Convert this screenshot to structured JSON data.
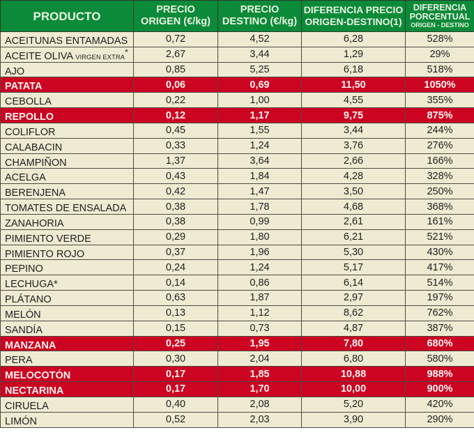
{
  "header": {
    "producto": "PRODUCTO",
    "precio_origen_l1": "PRECIO",
    "precio_origen_l2": "ORIGEN (€/kg)",
    "precio_destino_l1": "PRECIO",
    "precio_destino_l2": "DESTINO (€/kg)",
    "diferencia_l1": "DIFERENCIA PRECIO",
    "diferencia_l2": "ORIGEN-DESTINO(1)",
    "porcentual_l1": "DIFERENCIA",
    "porcentual_l2": "PORCENTUAL",
    "porcentual_l3": "ORIGEN - DESTINO"
  },
  "colors": {
    "header_bg": "#0b8a3a",
    "row_bg": "#efebd2",
    "highlight_bg": "#cc0422"
  },
  "rows": [
    {
      "name": "ACEITUNAS ENTAMADAS",
      "sub": "",
      "suffix": "",
      "origen": "0,72",
      "destino": "4,52",
      "diferencia": "6,28",
      "porcentaje": "528%",
      "highlight": false
    },
    {
      "name": "ACEITE OLIVA ",
      "sub": "VIRGEN EXTRA",
      "suffix": "*",
      "origen": "2,67",
      "destino": "3,44",
      "diferencia": "1,29",
      "porcentaje": "29%",
      "highlight": false
    },
    {
      "name": "AJO",
      "sub": "",
      "suffix": "",
      "origen": "0,85",
      "destino": "5,25",
      "diferencia": "6,18",
      "porcentaje": "518%",
      "highlight": false
    },
    {
      "name": "PATATA",
      "sub": "",
      "suffix": "",
      "origen": "0,06",
      "destino": "0,69",
      "diferencia": "11,50",
      "porcentaje": "1050%",
      "highlight": true
    },
    {
      "name": "CEBOLLA",
      "sub": "",
      "suffix": "",
      "origen": "0,22",
      "destino": "1,00",
      "diferencia": "4,55",
      "porcentaje": "355%",
      "highlight": false
    },
    {
      "name": "REPOLLO",
      "sub": "",
      "suffix": "",
      "origen": "0,12",
      "destino": "1,17",
      "diferencia": "9,75",
      "porcentaje": "875%",
      "highlight": true
    },
    {
      "name": "COLIFLOR",
      "sub": "",
      "suffix": "",
      "origen": "0,45",
      "destino": "1,55",
      "diferencia": "3,44",
      "porcentaje": "244%",
      "highlight": false
    },
    {
      "name": "CALABACIN",
      "sub": "",
      "suffix": "",
      "origen": "0,33",
      "destino": "1,24",
      "diferencia": "3,76",
      "porcentaje": "276%",
      "highlight": false
    },
    {
      "name": "CHAMPIÑON",
      "sub": "",
      "suffix": "",
      "origen": "1,37",
      "destino": "3,64",
      "diferencia": "2,66",
      "porcentaje": "166%",
      "highlight": false
    },
    {
      "name": "ACELGA",
      "sub": "",
      "suffix": "",
      "origen": "0,43",
      "destino": "1,84",
      "diferencia": "4,28",
      "porcentaje": "328%",
      "highlight": false
    },
    {
      "name": "BERENJENA",
      "sub": "",
      "suffix": "",
      "origen": "0,42",
      "destino": "1,47",
      "diferencia": "3,50",
      "porcentaje": "250%",
      "highlight": false
    },
    {
      "name": "TOMATES DE ENSALADA",
      "sub": "",
      "suffix": "",
      "origen": "0,38",
      "destino": "1,78",
      "diferencia": "4,68",
      "porcentaje": "368%",
      "highlight": false
    },
    {
      "name": "ZANAHORIA",
      "sub": "",
      "suffix": "",
      "origen": "0,38",
      "destino": "0,99",
      "diferencia": "2,61",
      "porcentaje": "161%",
      "highlight": false
    },
    {
      "name": "PIMIENTO VERDE",
      "sub": "",
      "suffix": "",
      "origen": "0,29",
      "destino": "1,80",
      "diferencia": "6,21",
      "porcentaje": "521%",
      "highlight": false
    },
    {
      "name": "PIMIENTO ROJO",
      "sub": "",
      "suffix": "",
      "origen": "0,37",
      "destino": "1,96",
      "diferencia": "5,30",
      "porcentaje": "430%",
      "highlight": false
    },
    {
      "name": "PEPINO",
      "sub": "",
      "suffix": "",
      "origen": "0,24",
      "destino": "1,24",
      "diferencia": "5,17",
      "porcentaje": "417%",
      "highlight": false
    },
    {
      "name": "LECHUGA*",
      "sub": "",
      "suffix": "",
      "origen": "0,14",
      "destino": "0,86",
      "diferencia": "6,14",
      "porcentaje": "514%",
      "highlight": false
    },
    {
      "name": "PLÁTANO",
      "sub": "",
      "suffix": "",
      "origen": "0,63",
      "destino": "1,87",
      "diferencia": "2,97",
      "porcentaje": "197%",
      "highlight": false
    },
    {
      "name": "MELÓN",
      "sub": "",
      "suffix": "",
      "origen": "0,13",
      "destino": "1,12",
      "diferencia": "8,62",
      "porcentaje": "762%",
      "highlight": false
    },
    {
      "name": "SANDÍA",
      "sub": "",
      "suffix": "",
      "origen": "0,15",
      "destino": "0,73",
      "diferencia": "4,87",
      "porcentaje": "387%",
      "highlight": false
    },
    {
      "name": "MANZANA",
      "sub": "",
      "suffix": "",
      "origen": "0,25",
      "destino": "1,95",
      "diferencia": "7,80",
      "porcentaje": "680%",
      "highlight": true
    },
    {
      "name": "PERA",
      "sub": "",
      "suffix": "",
      "origen": "0,30",
      "destino": "2,04",
      "diferencia": "6,80",
      "porcentaje": "580%",
      "highlight": false
    },
    {
      "name": "MELOCOTÓN",
      "sub": "",
      "suffix": "",
      "origen": "0,17",
      "destino": "1,85",
      "diferencia": "10,88",
      "porcentaje": "988%",
      "highlight": true
    },
    {
      "name": "NECTARINA",
      "sub": "",
      "suffix": "",
      "origen": "0,17",
      "destino": "1,70",
      "diferencia": "10,00",
      "porcentaje": "900%",
      "highlight": true
    },
    {
      "name": "CIRUELA",
      "sub": "",
      "suffix": "",
      "origen": "0,40",
      "destino": "2,08",
      "diferencia": "5,20",
      "porcentaje": "420%",
      "highlight": false
    },
    {
      "name": "LIMÓN",
      "sub": "",
      "suffix": "",
      "origen": "0,52",
      "destino": "2,03",
      "diferencia": "3,90",
      "porcentaje": "290%",
      "highlight": false
    }
  ]
}
